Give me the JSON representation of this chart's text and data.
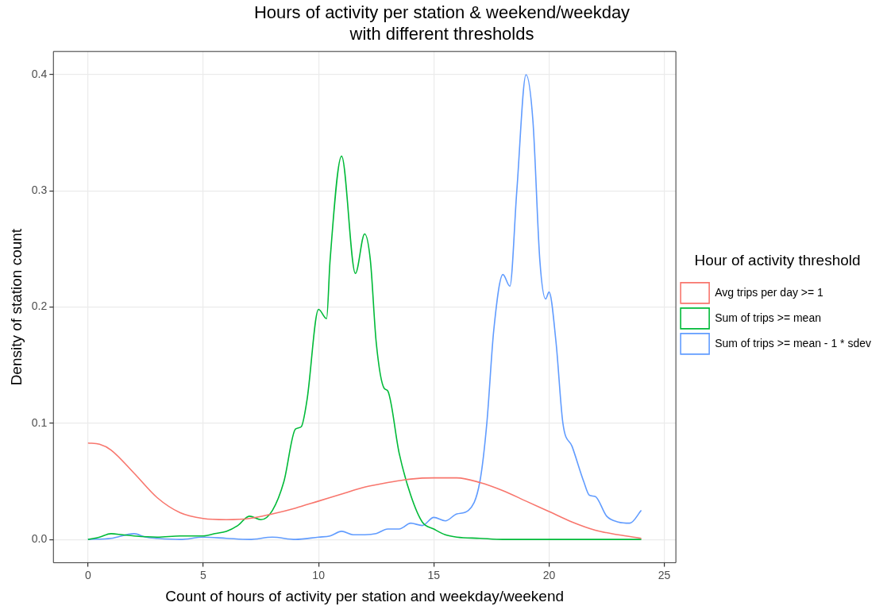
{
  "chart_data": {
    "type": "line",
    "title": "Hours of activity per station & weekend/weekday\nwith different thresholds",
    "xlabel": "Count of hours of activity per station and weekday/weekend",
    "ylabel": "Density of station count",
    "legend_title": "Hour of activity threshold",
    "legend": "right",
    "grid": true,
    "marker": "none",
    "line_style": "solid",
    "xlim": [
      -1.5,
      25.5
    ],
    "xticks": [
      0,
      5,
      10,
      15,
      20,
      25
    ],
    "ylim": [
      -0.02,
      0.42
    ],
    "yticks": [
      {
        "value": 0,
        "label": "0.0"
      },
      0.1,
      0.2,
      0.3,
      0.4
    ],
    "series": [
      {
        "name": "Avg trips per day >= 1",
        "color": "#f8766d",
        "x": [
          0,
          0.5,
          1,
          2,
          3,
          4,
          5,
          6,
          7,
          8,
          9,
          10,
          11,
          12,
          13,
          14,
          15,
          16,
          17,
          18,
          19,
          20,
          21,
          22,
          23,
          24
        ],
        "values": [
          0.083,
          0.082,
          0.077,
          0.057,
          0.036,
          0.023,
          0.018,
          0.017,
          0.018,
          0.022,
          0.027,
          0.033,
          0.039,
          0.045,
          0.049,
          0.052,
          0.053,
          0.053,
          0.049,
          0.042,
          0.033,
          0.024,
          0.015,
          0.008,
          0.004,
          0.001
        ]
      },
      {
        "name": "Sum of trips >= mean",
        "color": "#00ba38",
        "x": [
          0,
          0.5,
          1,
          1.5,
          2,
          3,
          4,
          5,
          5.5,
          6,
          6.5,
          7,
          7.5,
          8,
          8.5,
          9,
          9.25,
          9.5,
          10,
          10.35,
          10.5,
          11,
          11.6,
          12,
          12.25,
          12.5,
          12.85,
          13,
          13.5,
          14,
          14.5,
          15,
          15.5,
          16,
          17,
          18,
          24
        ],
        "values": [
          0,
          0.002,
          0.005,
          0.004,
          0.003,
          0.002,
          0.003,
          0.003,
          0.005,
          0.007,
          0.012,
          0.02,
          0.017,
          0.025,
          0.05,
          0.095,
          0.097,
          0.12,
          0.198,
          0.19,
          0.24,
          0.33,
          0.229,
          0.263,
          0.24,
          0.17,
          0.13,
          0.128,
          0.074,
          0.038,
          0.015,
          0.009,
          0.004,
          0.002,
          0.001,
          0,
          0
        ]
      },
      {
        "name": "Sum of trips >= mean - 1 * sdev",
        "color": "#619cff",
        "x": [
          0,
          1,
          2,
          2.5,
          3,
          4,
          5,
          6,
          7,
          8,
          9,
          10,
          10.5,
          11,
          11.5,
          12,
          12.5,
          13,
          13.5,
          14,
          14.5,
          15,
          15.5,
          16,
          16.5,
          17,
          17.3,
          17.6,
          18,
          18.3,
          18.6,
          19,
          19.3,
          19.6,
          19.85,
          20,
          20.3,
          20.6,
          21,
          21.5,
          21.75,
          22,
          22.5,
          23,
          23.5,
          24
        ],
        "values": [
          0,
          0.001,
          0.005,
          0.002,
          0.001,
          0,
          0.002,
          0.001,
          0,
          0.002,
          0,
          0.002,
          0.003,
          0.007,
          0.004,
          0.004,
          0.005,
          0.009,
          0.009,
          0.014,
          0.012,
          0.019,
          0.016,
          0.022,
          0.025,
          0.05,
          0.1,
          0.18,
          0.228,
          0.218,
          0.3,
          0.4,
          0.36,
          0.24,
          0.207,
          0.213,
          0.17,
          0.1,
          0.08,
          0.05,
          0.038,
          0.037,
          0.02,
          0.015,
          0.014,
          0.025
        ]
      }
    ]
  }
}
